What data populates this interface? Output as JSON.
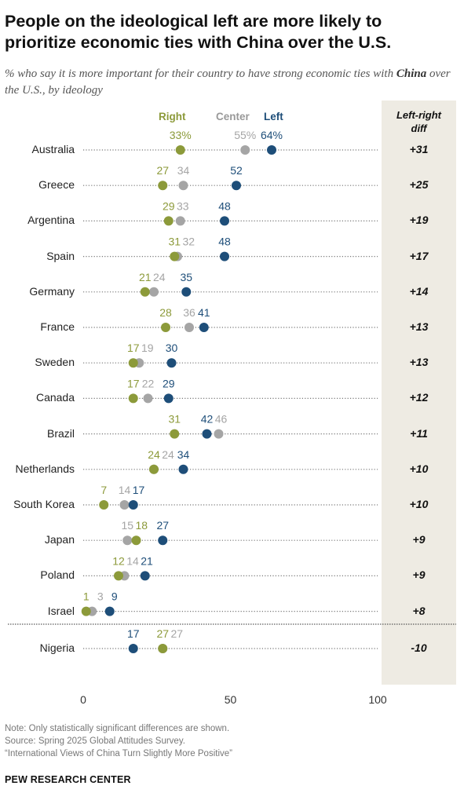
{
  "title": "People on the ideological left are more likely to prioritize economic ties with China over the U.S.",
  "subtitle_pre": "% who say it is more important for their country to have strong economic ties with ",
  "subtitle_bold": "China",
  "subtitle_post": " over the U.S., by ideology",
  "diff_header_line1": "Left-right",
  "diff_header_line2": "diff",
  "notes": {
    "note": "Note: Only statistically significant differences are shown.",
    "source": "Source: Spring 2025 Global Attitudes Survey.",
    "report": "“International Views of China Turn Slightly More Positive”"
  },
  "brand": "PEW RESEARCH CENTER",
  "colors": {
    "right": "#8c9a3a",
    "center": "#a5a5a5",
    "left": "#1e4e79",
    "panel": "#eeebe3"
  },
  "chart_data": {
    "type": "scatter",
    "series": [
      {
        "name": "Right",
        "color": "#8c9a3a"
      },
      {
        "name": "Center",
        "color": "#a5a5a5"
      },
      {
        "name": "Left",
        "color": "#1e4e79"
      }
    ],
    "xlim": [
      0,
      100
    ],
    "xticks": [
      0,
      50,
      100
    ],
    "rows": [
      {
        "country": "Australia",
        "right": 33,
        "center": 55,
        "left": 64,
        "diff": "+31",
        "pct": true
      },
      {
        "country": "Greece",
        "right": 27,
        "center": 34,
        "left": 52,
        "diff": "+25"
      },
      {
        "country": "Argentina",
        "right": 29,
        "center": 33,
        "left": 48,
        "diff": "+19"
      },
      {
        "country": "Spain",
        "right": 31,
        "center": 32,
        "left": 48,
        "diff": "+17"
      },
      {
        "country": "Germany",
        "right": 21,
        "center": 24,
        "left": 35,
        "diff": "+14"
      },
      {
        "country": "France",
        "right": 28,
        "center": 36,
        "left": 41,
        "diff": "+13"
      },
      {
        "country": "Sweden",
        "right": 17,
        "center": 19,
        "left": 30,
        "diff": "+13"
      },
      {
        "country": "Canada",
        "right": 17,
        "center": 22,
        "left": 29,
        "diff": "+12"
      },
      {
        "country": "Brazil",
        "right": 31,
        "center": 46,
        "left": 42,
        "diff": "+11"
      },
      {
        "country": "Netherlands",
        "right": 24,
        "center": 24,
        "left": 34,
        "diff": "+10"
      },
      {
        "country": "South Korea",
        "right": 7,
        "center": 14,
        "left": 17,
        "diff": "+10"
      },
      {
        "country": "Japan",
        "right": 18,
        "center": 15,
        "left": 27,
        "diff": "+9"
      },
      {
        "country": "Poland",
        "right": 12,
        "center": 14,
        "left": 21,
        "diff": "+9"
      },
      {
        "country": "Israel",
        "right": 1,
        "center": 3,
        "left": 9,
        "diff": "+8"
      },
      {
        "country": "Nigeria",
        "right": 27,
        "center": 27,
        "left": 17,
        "diff": "-10"
      }
    ]
  }
}
